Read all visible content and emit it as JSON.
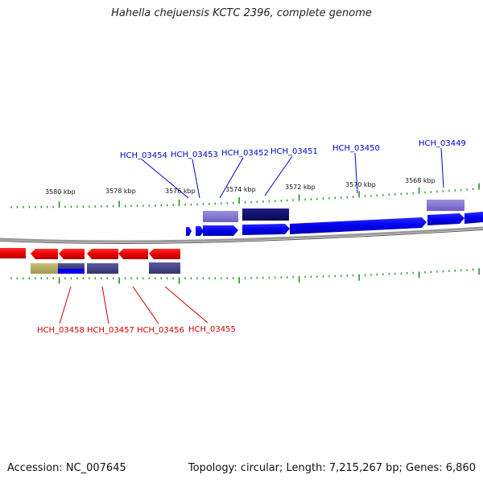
{
  "title": "Hahella chejuensis KCTC 2396, complete genome",
  "accession": "Accession: NC_007645",
  "topology": "Topology: circular; Length: 7,215,267 bp; Genes: 6,860",
  "colors": {
    "forward_gene": "#0a0af0",
    "reverse_gene": "#f00a0a",
    "forward_label": "#0000cc",
    "reverse_label": "#cc0000",
    "tick": "#1a8a1a",
    "backbone": "#808080"
  },
  "scale_labels": [
    "3580 kbp",
    "3578 kbp",
    "3576 kbp",
    "3574 kbp",
    "3572 kbp",
    "3570 kbp",
    "3568 kbp"
  ],
  "forward_gene_labels": [
    "HCH_03454",
    "HCH_03453",
    "HCH_03452",
    "HCH_03451",
    "HCH_03450",
    "HCH_03449"
  ],
  "reverse_gene_labels": [
    "HCH_03458",
    "HCH_03457",
    "HCH_03456",
    "HCH_03455"
  ]
}
